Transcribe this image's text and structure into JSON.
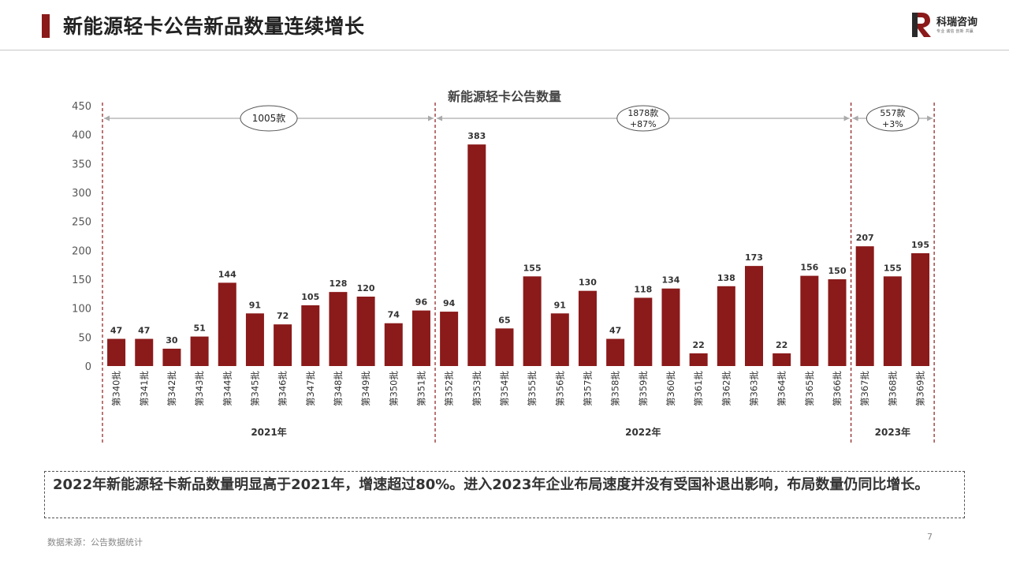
{
  "header": {
    "title": "新能源轻卡公告新品数量连续增长",
    "logo_text": "科瑞咨询",
    "logo_subtext": "专业  诚信  创新  共赢",
    "accent_color": "#8b1a1a"
  },
  "chart_data": {
    "type": "bar",
    "title": "新能源轻卡公告数量",
    "categories": [
      "第340批",
      "第341批",
      "第342批",
      "第343批",
      "第344批",
      "第345批",
      "第346批",
      "第347批",
      "第348批",
      "第349批",
      "第350批",
      "第351批",
      "第352批",
      "第353批",
      "第354批",
      "第355批",
      "第356批",
      "第357批",
      "第358批",
      "第359批",
      "第360批",
      "第361批",
      "第362批",
      "第363批",
      "第364批",
      "第365批",
      "第366批",
      "第367批",
      "第368批",
      "第369批"
    ],
    "values": [
      47,
      47,
      30,
      51,
      144,
      91,
      72,
      105,
      128,
      120,
      74,
      96,
      94,
      383,
      65,
      155,
      91,
      130,
      47,
      118,
      134,
      22,
      138,
      173,
      22,
      156,
      150,
      207,
      155,
      195
    ],
    "ylim": [
      0,
      450
    ],
    "yticks": [
      0,
      50,
      100,
      150,
      200,
      250,
      300,
      350,
      400,
      450
    ],
    "grid": false,
    "bar_color": "#8b1a1a",
    "groups": [
      {
        "label": "2021年",
        "start": 0,
        "end": 11,
        "annotation": [
          "1005款"
        ]
      },
      {
        "label": "2022年",
        "start": 12,
        "end": 26,
        "annotation": [
          "1878款",
          "+87%"
        ]
      },
      {
        "label": "2023年",
        "start": 27,
        "end": 29,
        "annotation": [
          "557款",
          "+3%"
        ]
      }
    ]
  },
  "summary": "2022年新能源轻卡新品数量明显高于2021年，增速超过80%。进入2023年企业布局速度并没有受国补退出影响，布局数量仍同比增长。",
  "footer": {
    "source": "数据来源：公告数据统计",
    "page_number": "7"
  }
}
